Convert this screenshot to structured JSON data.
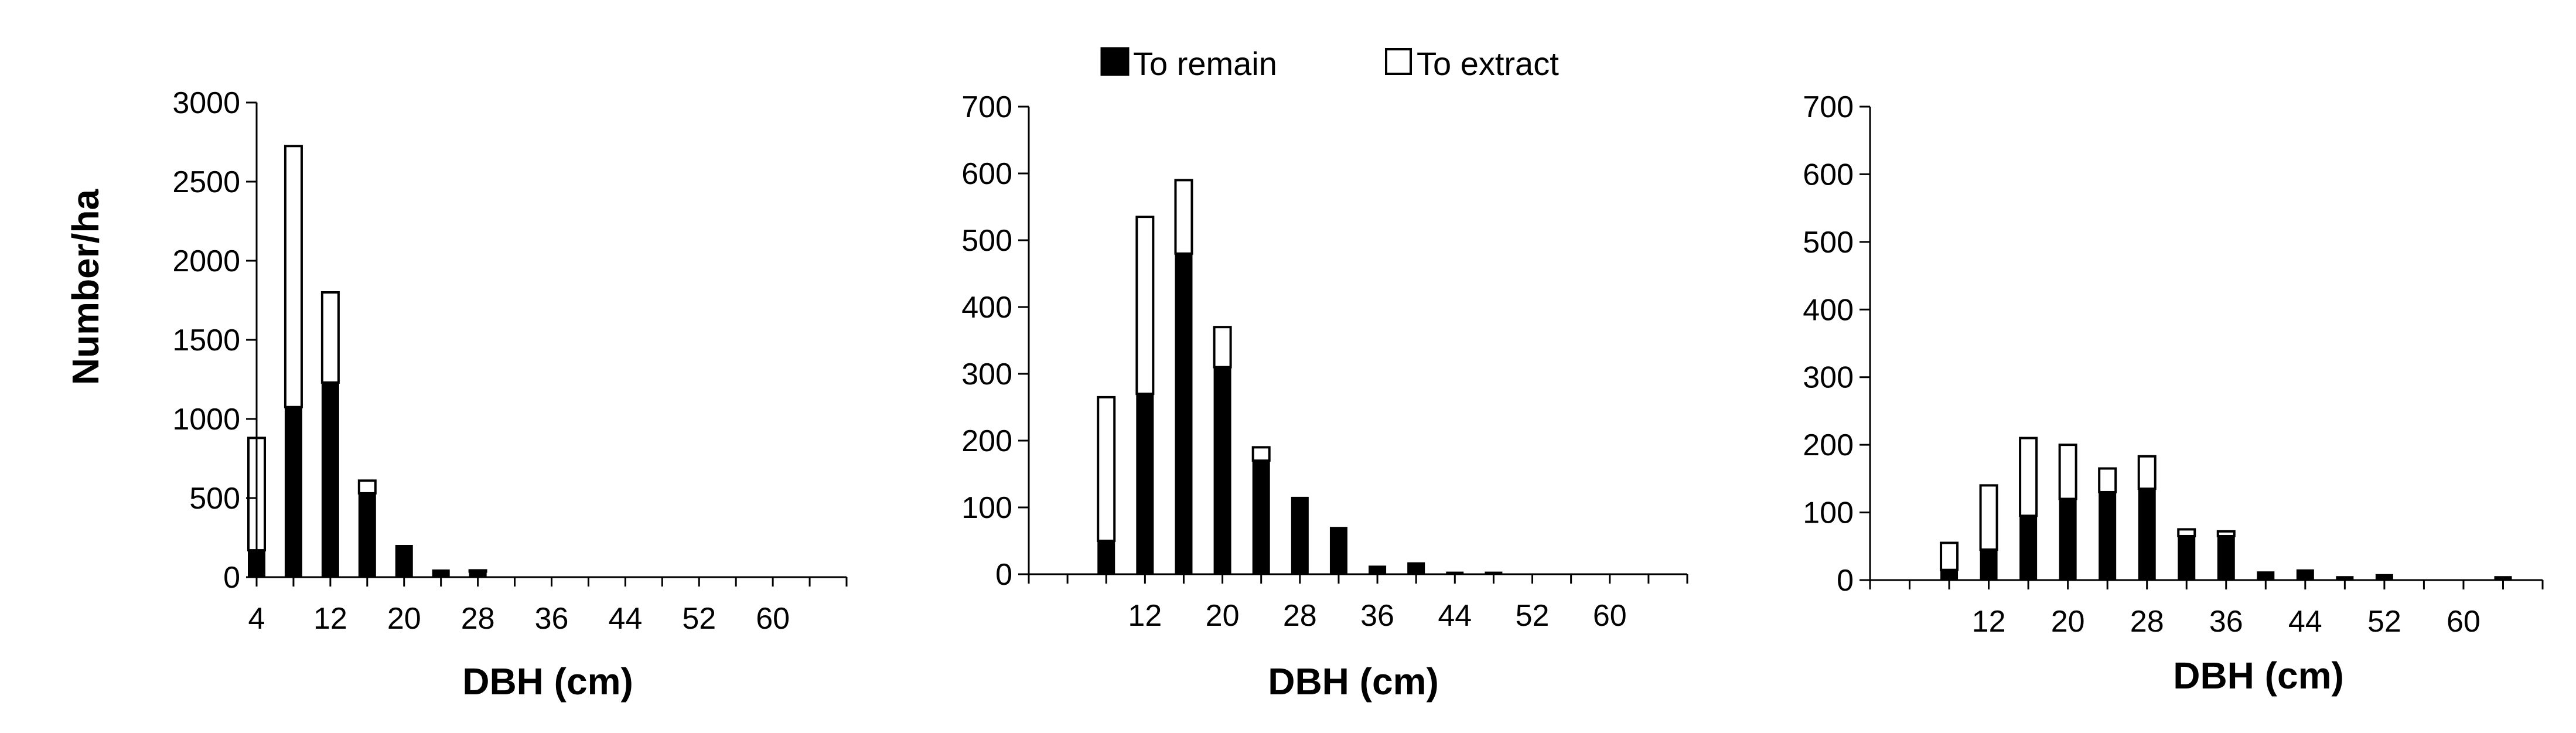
{
  "legend": {
    "items": [
      {
        "label": "To remain",
        "color": "#000000"
      },
      {
        "label": "To extract",
        "color": "#ffffff"
      }
    ],
    "placement": "top-center"
  },
  "chart_data": [
    {
      "type": "bar",
      "stacked": true,
      "ylabel": "Number/ha",
      "xlabel": "DBH (cm)",
      "ylim": [
        0,
        3000
      ],
      "yticks": [
        0,
        500,
        1000,
        1500,
        2000,
        2500,
        3000
      ],
      "xticks": [
        4,
        12,
        20,
        28,
        36,
        44,
        52,
        60
      ],
      "categories": [
        4,
        8,
        12,
        16,
        20,
        24,
        28,
        32,
        36,
        40,
        44,
        48,
        52,
        56,
        60,
        64
      ],
      "series": [
        {
          "name": "To remain",
          "values": [
            170,
            1075,
            1230,
            530,
            200,
            45,
            35,
            0,
            0,
            0,
            0,
            0,
            0,
            0,
            0,
            0
          ]
        },
        {
          "name": "To extract",
          "values": [
            710,
            1650,
            570,
            80,
            0,
            0,
            8,
            0,
            0,
            0,
            0,
            0,
            0,
            0,
            0,
            0
          ]
        }
      ]
    },
    {
      "type": "bar",
      "stacked": true,
      "ylabel": "",
      "xlabel": "DBH (cm)",
      "ylim": [
        0,
        700
      ],
      "yticks": [
        0,
        100,
        200,
        300,
        400,
        500,
        600,
        700
      ],
      "xticks": [
        12,
        20,
        28,
        36,
        44,
        52,
        60
      ],
      "categories": [
        4,
        8,
        12,
        16,
        20,
        24,
        28,
        32,
        36,
        40,
        44,
        48,
        52,
        56,
        60,
        64
      ],
      "series": [
        {
          "name": "To remain",
          "values": [
            0,
            50,
            270,
            480,
            310,
            170,
            115,
            70,
            12,
            17,
            3,
            3,
            0,
            0,
            0,
            0
          ]
        },
        {
          "name": "To extract",
          "values": [
            0,
            215,
            265,
            110,
            60,
            20,
            0,
            0,
            0,
            0,
            0,
            0,
            0,
            0,
            0,
            0
          ]
        }
      ]
    },
    {
      "type": "bar",
      "stacked": true,
      "ylabel": "",
      "xlabel": "DBH (cm)",
      "ylim": [
        0,
        700
      ],
      "yticks": [
        0,
        100,
        200,
        300,
        400,
        500,
        600,
        700
      ],
      "xticks": [
        12,
        20,
        28,
        36,
        44,
        52,
        60
      ],
      "categories": [
        4,
        8,
        12,
        16,
        20,
        24,
        28,
        32,
        36,
        40,
        44,
        48,
        52,
        56,
        60,
        64
      ],
      "series": [
        {
          "name": "To remain",
          "values": [
            0,
            15,
            45,
            95,
            120,
            130,
            135,
            65,
            65,
            12,
            15,
            5,
            8,
            0,
            0,
            5
          ]
        },
        {
          "name": "To extract",
          "values": [
            0,
            40,
            95,
            115,
            80,
            35,
            48,
            10,
            7,
            0,
            0,
            0,
            0,
            0,
            0,
            0
          ]
        }
      ]
    }
  ]
}
